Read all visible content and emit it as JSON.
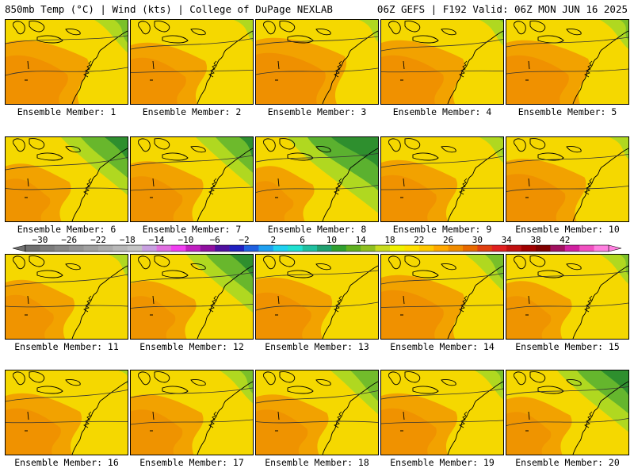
{
  "header": {
    "left": "850mb Temp (°C) | Wind (kts) | College of DuPage NEXLAB",
    "right": "06Z GEFS | F192 Valid: 06Z MON JUN 16 2025"
  },
  "members": [
    {
      "label": "Ensemble Member: 1",
      "green_extent": 0.35,
      "warmth": 0.7
    },
    {
      "label": "Ensemble Member: 2",
      "green_extent": 0.2,
      "warmth": 0.6
    },
    {
      "label": "Ensemble Member: 3",
      "green_extent": 0.2,
      "warmth": 0.8
    },
    {
      "label": "Ensemble Member: 4",
      "green_extent": 0.25,
      "warmth": 0.7
    },
    {
      "label": "Ensemble Member: 5",
      "green_extent": 0.3,
      "warmth": 0.7
    },
    {
      "label": "Ensemble Member: 6",
      "green_extent": 0.7,
      "warmth": 0.45
    },
    {
      "label": "Ensemble Member: 7",
      "green_extent": 0.6,
      "warmth": 0.55
    },
    {
      "label": "Ensemble Member: 8",
      "green_extent": 0.95,
      "warmth": 0.35
    },
    {
      "label": "Ensemble Member: 9",
      "green_extent": 0.25,
      "warmth": 0.6
    },
    {
      "label": "Ensemble Member: 10",
      "green_extent": 0.2,
      "warmth": 0.65
    },
    {
      "label": "Ensemble Member: 11",
      "green_extent": 0.2,
      "warmth": 0.5
    },
    {
      "label": "Ensemble Member: 12",
      "green_extent": 0.7,
      "warmth": 0.45
    },
    {
      "label": "Ensemble Member: 13",
      "green_extent": 0.05,
      "warmth": 0.6
    },
    {
      "label": "Ensemble Member: 14",
      "green_extent": 0.4,
      "warmth": 0.7
    },
    {
      "label": "Ensemble Member: 15",
      "green_extent": 0.3,
      "warmth": 0.45
    },
    {
      "label": "Ensemble Member: 16",
      "green_extent": 0.1,
      "warmth": 0.6
    },
    {
      "label": "Ensemble Member: 17",
      "green_extent": 0.35,
      "warmth": 0.55
    },
    {
      "label": "Ensemble Member: 18",
      "green_extent": 0.5,
      "warmth": 0.55
    },
    {
      "label": "Ensemble Member: 19",
      "green_extent": 0.3,
      "warmth": 0.6
    },
    {
      "label": "Ensemble Member: 20",
      "green_extent": 0.75,
      "warmth": 0.45
    }
  ],
  "colorbar": {
    "labels": [
      "-30",
      "-26",
      "-22",
      "-18",
      "-14",
      "-10",
      "-6",
      "-2",
      "2",
      "6",
      "10",
      "14",
      "18",
      "22",
      "26",
      "30",
      "34",
      "38",
      "42"
    ],
    "colors": [
      "#707070",
      "#7c7c7c",
      "#888888",
      "#949494",
      "#a0a0a0",
      "#acacac",
      "#b8b8b8",
      "#c4c4c4",
      "#c8a0e0",
      "#e070e0",
      "#f040f0",
      "#c020c0",
      "#9010a0",
      "#5010a0",
      "#2020c0",
      "#2060e0",
      "#20a0f0",
      "#20d0f0",
      "#20e0d0",
      "#20c0a0",
      "#20a070",
      "#30a030",
      "#60b020",
      "#90c020",
      "#c8dc20",
      "#f0f000",
      "#ffe000",
      "#ffc800",
      "#ffa800",
      "#f08c00",
      "#e86a00",
      "#e04010",
      "#e02020",
      "#c01010",
      "#a00000",
      "#800000",
      "#a01060",
      "#d020a0",
      "#f050c0",
      "#ff80e0"
    ]
  }
}
